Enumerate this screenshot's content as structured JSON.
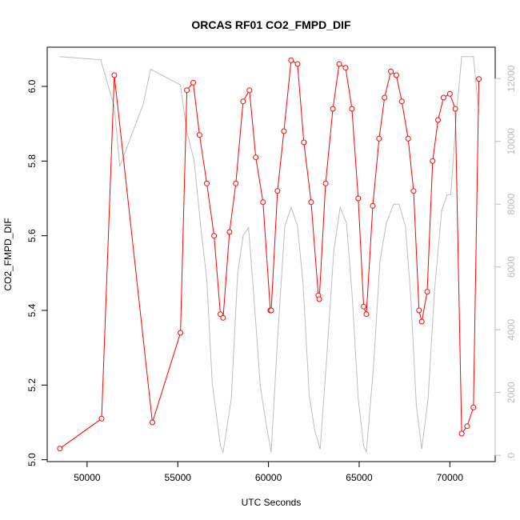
{
  "chart_data": {
    "type": "line",
    "title": "ORCAS RF01 CO2_FMPD_DIF",
    "xlabel": "UTC Seconds",
    "ylabel": "CO2_FMPD_DIF",
    "xlim": [
      47800,
      72500
    ],
    "ylim": [
      4.995,
      6.105
    ],
    "y2lim": [
      -200,
      13000
    ],
    "x_ticks": [
      50000,
      55000,
      60000,
      65000,
      70000
    ],
    "y_ticks": [
      5.0,
      5.2,
      5.4,
      5.6,
      5.8,
      6.0
    ],
    "y_tick_labels": [
      "5.0",
      "5.2",
      "5.4",
      "5.6",
      "5.8",
      "6.0"
    ],
    "y2_ticks": [
      0,
      2000,
      4000,
      6000,
      8000,
      10000,
      12000
    ],
    "y2_tick_labels": [
      "0",
      "2000",
      "4000",
      "6000",
      "8000",
      "10000",
      "12000"
    ],
    "colors": {
      "primary": "#ff0000",
      "secondary": "#bebebe"
    },
    "series": [
      {
        "color": "#ff0000",
        "axis": "left",
        "markers": "open-circle",
        "points": [
          [
            48500,
            5.03
          ],
          [
            50800,
            5.11
          ],
          [
            51500,
            6.03
          ],
          [
            53600,
            5.1
          ],
          [
            55150,
            5.34
          ],
          [
            55500,
            5.99
          ],
          [
            55850,
            6.01
          ],
          [
            56200,
            5.87
          ],
          [
            56600,
            5.74
          ],
          [
            57000,
            5.6
          ],
          [
            57350,
            5.39
          ],
          [
            57500,
            5.38
          ],
          [
            57850,
            5.61
          ],
          [
            58200,
            5.74
          ],
          [
            58600,
            5.96
          ],
          [
            58950,
            5.99
          ],
          [
            59300,
            5.81
          ],
          [
            59700,
            5.69
          ],
          [
            60100,
            5.4
          ],
          [
            60150,
            5.4
          ],
          [
            60500,
            5.72
          ],
          [
            60850,
            5.88
          ],
          [
            61250,
            6.07
          ],
          [
            61600,
            6.06
          ],
          [
            61950,
            5.85
          ],
          [
            62350,
            5.69
          ],
          [
            62750,
            5.44
          ],
          [
            62800,
            5.43
          ],
          [
            63150,
            5.74
          ],
          [
            63550,
            5.94
          ],
          [
            63900,
            6.06
          ],
          [
            64250,
            6.05
          ],
          [
            64600,
            5.94
          ],
          [
            64950,
            5.7
          ],
          [
            65250,
            5.41
          ],
          [
            65400,
            5.39
          ],
          [
            65750,
            5.68
          ],
          [
            66100,
            5.86
          ],
          [
            66400,
            5.97
          ],
          [
            66750,
            6.04
          ],
          [
            67050,
            6.03
          ],
          [
            67350,
            5.96
          ],
          [
            67700,
            5.86
          ],
          [
            68000,
            5.72
          ],
          [
            68300,
            5.4
          ],
          [
            68450,
            5.37
          ],
          [
            68750,
            5.45
          ],
          [
            69050,
            5.8
          ],
          [
            69350,
            5.91
          ],
          [
            69650,
            5.97
          ],
          [
            70000,
            5.98
          ],
          [
            70300,
            5.94
          ],
          [
            70650,
            5.07
          ],
          [
            70950,
            5.09
          ],
          [
            71300,
            5.14
          ],
          [
            71600,
            6.02
          ]
        ]
      },
      {
        "color": "#bebebe",
        "axis": "right",
        "markers": "none",
        "points": [
          [
            48500,
            12700
          ],
          [
            50750,
            12600
          ],
          [
            51500,
            11100
          ],
          [
            51800,
            9200
          ],
          [
            53100,
            11200
          ],
          [
            53500,
            12300
          ],
          [
            55150,
            11800
          ],
          [
            55500,
            10300
          ],
          [
            55900,
            9400
          ],
          [
            56300,
            7100
          ],
          [
            56600,
            5600
          ],
          [
            56900,
            2300
          ],
          [
            57150,
            1200
          ],
          [
            57350,
            300
          ],
          [
            57500,
            100
          ],
          [
            57950,
            1800
          ],
          [
            58300,
            5800
          ],
          [
            58600,
            7000
          ],
          [
            58900,
            7250
          ],
          [
            59200,
            5000
          ],
          [
            59550,
            2200
          ],
          [
            59900,
            900
          ],
          [
            60150,
            100
          ],
          [
            60500,
            3700
          ],
          [
            60900,
            7300
          ],
          [
            61250,
            7900
          ],
          [
            61600,
            7300
          ],
          [
            61900,
            5500
          ],
          [
            62250,
            1900
          ],
          [
            62550,
            800
          ],
          [
            62850,
            200
          ],
          [
            63200,
            3000
          ],
          [
            63600,
            6500
          ],
          [
            63950,
            7900
          ],
          [
            64300,
            7400
          ],
          [
            64600,
            5200
          ],
          [
            64950,
            1800
          ],
          [
            65250,
            300
          ],
          [
            65400,
            100
          ],
          [
            65800,
            2900
          ],
          [
            66150,
            6200
          ],
          [
            66500,
            7400
          ],
          [
            66900,
            8000
          ],
          [
            67200,
            8000
          ],
          [
            67550,
            7300
          ],
          [
            67850,
            5000
          ],
          [
            68150,
            1600
          ],
          [
            68450,
            200
          ],
          [
            68800,
            1800
          ],
          [
            69150,
            5200
          ],
          [
            69550,
            7800
          ],
          [
            69850,
            8300
          ],
          [
            70050,
            8300
          ],
          [
            70350,
            10800
          ],
          [
            70650,
            12700
          ],
          [
            71300,
            12700
          ],
          [
            71600,
            10900
          ]
        ]
      }
    ]
  }
}
